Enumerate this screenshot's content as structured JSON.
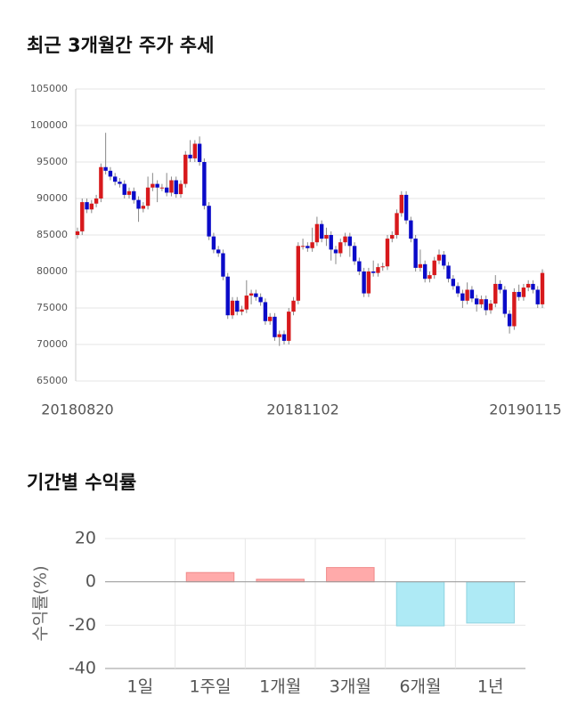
{
  "chart_data": [
    {
      "type": "candlestick",
      "title": "최근 3개월간 주가 추세",
      "categories": [
        "20180820",
        null,
        null,
        null,
        null,
        null,
        null,
        null,
        null,
        null,
        null,
        null,
        null,
        null,
        null,
        null,
        null,
        null,
        null,
        null,
        null,
        null,
        null,
        null,
        null,
        null,
        null,
        null,
        null,
        null,
        null,
        null,
        null,
        null,
        null,
        null,
        null,
        null,
        null,
        null,
        null,
        null,
        null,
        null,
        null,
        null,
        null,
        null,
        "20181102",
        null,
        null,
        null,
        null,
        null,
        null,
        null,
        null,
        null,
        null,
        null,
        null,
        null,
        null,
        null,
        null,
        null,
        null,
        null,
        null,
        null,
        null,
        null,
        null,
        null,
        null,
        null,
        null,
        null,
        null,
        null,
        null,
        null,
        null,
        null,
        null,
        null,
        null,
        null,
        null,
        null,
        null,
        null,
        null,
        null,
        null,
        null,
        null,
        null,
        null,
        "20190115"
      ],
      "open": [
        85000,
        85500,
        89500,
        88500,
        89300,
        90000,
        94300,
        93800,
        93000,
        92300,
        92000,
        90500,
        91000,
        89800,
        88600,
        89000,
        91500,
        92000,
        91500,
        91500,
        90800,
        92500,
        90600,
        92000,
        96000,
        95500,
        97500,
        95000,
        89000,
        84800,
        83000,
        82500,
        79300,
        74000,
        76000,
        74500,
        74800,
        76700,
        77000,
        76500,
        75800,
        73200,
        73800,
        71000,
        71400,
        70500,
        74500,
        76000,
        83500,
        83500,
        83200,
        84000,
        86500,
        84500,
        85000,
        83000,
        82500,
        84000,
        84800,
        83500,
        81400,
        80000,
        77000,
        80000,
        79800,
        80600,
        80700,
        84500,
        85000,
        88000,
        90500,
        87000,
        84500,
        80500,
        81000,
        79000,
        79500,
        81500,
        82300,
        80800,
        79000,
        78000,
        77000,
        76000,
        77500,
        76300,
        75500,
        76200,
        74700,
        75600,
        78300,
        77500,
        74200,
        72500,
        77200,
        76500,
        77800,
        78300,
        77500,
        75500
      ],
      "high": [
        86000,
        90000,
        90000,
        89800,
        90500,
        94800,
        99000,
        94300,
        93500,
        92800,
        92500,
        91500,
        91500,
        90300,
        89500,
        93000,
        93500,
        92500,
        92000,
        93500,
        93000,
        93000,
        92500,
        96500,
        98000,
        98000,
        98500,
        95500,
        89500,
        85300,
        83500,
        83000,
        79800,
        76500,
        76500,
        75300,
        78800,
        77500,
        77500,
        77000,
        76300,
        74300,
        74300,
        71900,
        71900,
        75000,
        76500,
        84000,
        84500,
        84000,
        86000,
        87500,
        87000,
        86000,
        85500,
        83500,
        84500,
        85300,
        85300,
        84000,
        81900,
        80500,
        80500,
        81500,
        81100,
        81200,
        85000,
        85500,
        88500,
        91000,
        91000,
        87500,
        85000,
        83000,
        81500,
        80000,
        82000,
        83000,
        82800,
        81300,
        79500,
        78500,
        77500,
        78500,
        78000,
        76800,
        76700,
        76700,
        76100,
        79500,
        78800,
        78000,
        74700,
        77700,
        78200,
        78300,
        78800,
        78800,
        78000,
        80300
      ],
      "low": [
        84500,
        85000,
        88000,
        88000,
        88800,
        89500,
        93300,
        92500,
        91800,
        91500,
        90000,
        90000,
        89300,
        86800,
        88100,
        88500,
        91000,
        89500,
        91000,
        90300,
        90300,
        90100,
        90100,
        91500,
        95000,
        95000,
        94500,
        88500,
        84300,
        82500,
        82000,
        78800,
        73500,
        73500,
        74000,
        74000,
        74300,
        75500,
        76000,
        75300,
        72700,
        72700,
        70500,
        69800,
        70000,
        70000,
        74000,
        75500,
        83000,
        82700,
        82700,
        83500,
        84000,
        83500,
        81500,
        81000,
        82000,
        83500,
        82000,
        80900,
        79500,
        76500,
        76500,
        79300,
        79300,
        80100,
        80200,
        84000,
        84500,
        87500,
        86500,
        84000,
        80000,
        80000,
        78500,
        78500,
        79000,
        81000,
        80300,
        78500,
        77500,
        76500,
        75000,
        75500,
        75800,
        74500,
        75000,
        74000,
        74200,
        75100,
        77000,
        73700,
        71500,
        72000,
        76000,
        76000,
        77300,
        77000,
        75000,
        75000
      ],
      "close": [
        85500,
        89500,
        88500,
        89300,
        90000,
        94300,
        93800,
        93000,
        92300,
        92000,
        90500,
        91000,
        89800,
        88600,
        89000,
        91500,
        92000,
        91500,
        91500,
        90800,
        92500,
        90600,
        92000,
        96000,
        95500,
        97500,
        95000,
        89000,
        84800,
        83000,
        82500,
        79300,
        74000,
        76000,
        74500,
        74800,
        76700,
        77000,
        76500,
        75800,
        73200,
        73800,
        71000,
        71400,
        70500,
        74500,
        76000,
        83500,
        83500,
        83200,
        84000,
        86500,
        84500,
        85000,
        83000,
        82500,
        84000,
        84800,
        83500,
        81400,
        80000,
        77000,
        80000,
        79800,
        80600,
        80700,
        84500,
        85000,
        88000,
        90500,
        87000,
        84500,
        80500,
        81000,
        79000,
        79500,
        81500,
        82300,
        80800,
        79000,
        78000,
        77000,
        76000,
        77500,
        76300,
        75500,
        76200,
        74700,
        75600,
        78300,
        77500,
        74200,
        72500,
        77200,
        76500,
        77800,
        78300,
        77500,
        75500,
        79800
      ],
      "up_color": "#d7191c",
      "down_color": "#0a0ac8",
      "ylim": [
        65000,
        105000
      ],
      "yticks": [
        65000,
        70000,
        75000,
        80000,
        85000,
        90000,
        95000,
        100000,
        105000
      ],
      "grid": true
    },
    {
      "type": "bar",
      "title": "기간별 수익률",
      "ylabel": "수익률(%)",
      "categories": [
        "1일",
        "1주일",
        "1개월",
        "3개월",
        "6개월",
        "1년"
      ],
      "values": [
        0,
        4.3,
        1.2,
        6.6,
        -20.3,
        -19
      ],
      "positive_color": "#ffaaaa",
      "negative_color": "#aeeaf5",
      "ylim": [
        -40,
        20
      ],
      "yticks": [
        -40,
        -20,
        0,
        20
      ],
      "grid": true
    }
  ]
}
